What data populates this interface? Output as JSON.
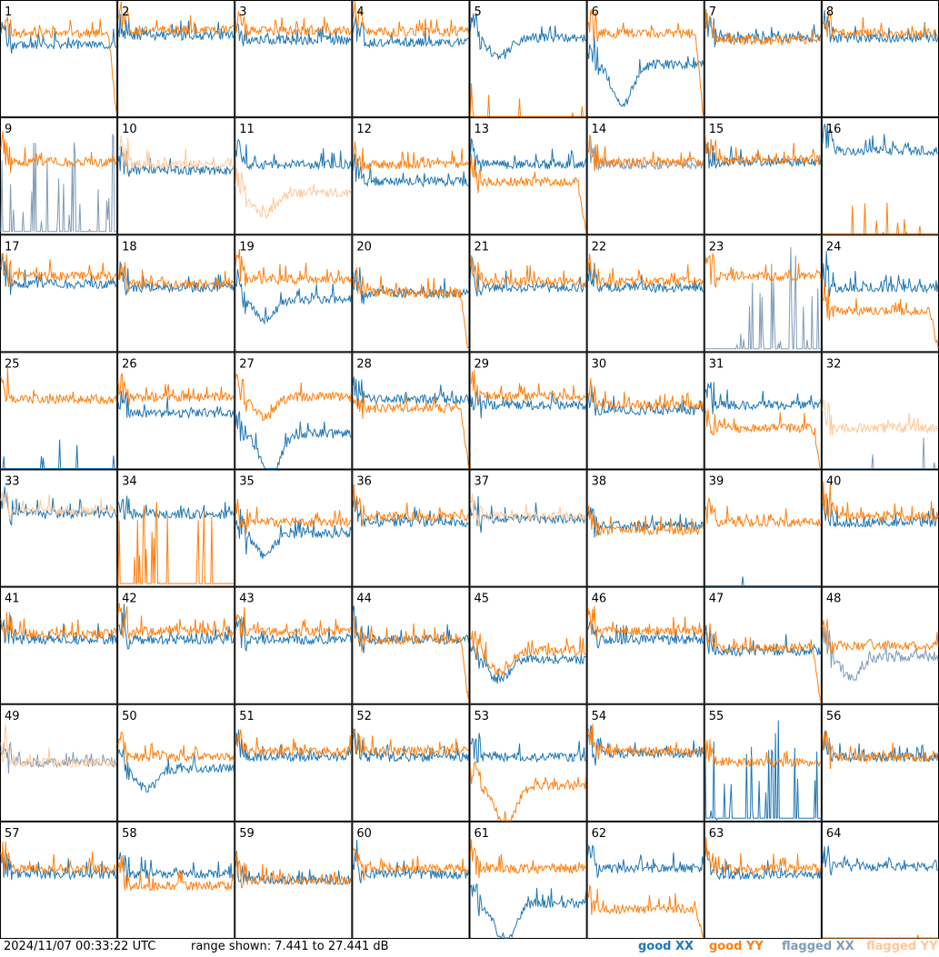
{
  "chart_data": {
    "type": "line",
    "title": "",
    "timestamp": "2024/11/07 00:33:22 UTC",
    "range_label": "range shown: 7.441 to 27.441 dB",
    "ylim": [
      7.441,
      27.441
    ],
    "unit": "dB",
    "grid": {
      "rows": 8,
      "cols": 8
    },
    "legend": [
      {
        "label": "good XX",
        "color": "#1f77b4"
      },
      {
        "label": "good YY",
        "color": "#ff7f0e"
      },
      {
        "label": "flagged XX",
        "color": "#7f9cb8"
      },
      {
        "label": "flagged YY",
        "color": "#ffc89a"
      }
    ],
    "panels": [
      {
        "id": "1",
        "xx": "good",
        "yy": "good",
        "xxLevel": 0.62,
        "yyLevel": 0.72,
        "xxShape": "normal",
        "yyShape": "drop"
      },
      {
        "id": "2",
        "xx": "good",
        "yy": "good",
        "xxLevel": 0.7,
        "yyLevel": 0.75,
        "xxShape": "normal",
        "yyShape": "normal"
      },
      {
        "id": "3",
        "xx": "good",
        "yy": "good",
        "xxLevel": 0.66,
        "yyLevel": 0.74,
        "xxShape": "normal",
        "yyShape": "normal"
      },
      {
        "id": "4",
        "xx": "good",
        "yy": "good",
        "xxLevel": 0.64,
        "yyLevel": 0.73,
        "xxShape": "normal",
        "yyShape": "normal"
      },
      {
        "id": "5",
        "xx": "good",
        "yy": "good",
        "xxLevel": 0.68,
        "yyLevel": 0.0,
        "xxShape": "dip",
        "yyShape": "flat"
      },
      {
        "id": "6",
        "xx": "good",
        "yy": "good",
        "xxLevel": 0.45,
        "yyLevel": 0.72,
        "xxShape": "deepdip",
        "yyShape": "drop"
      },
      {
        "id": "7",
        "xx": "good",
        "yy": "good",
        "xxLevel": 0.68,
        "yyLevel": 0.66,
        "xxShape": "normal",
        "yyShape": "normal"
      },
      {
        "id": "8",
        "xx": "good",
        "yy": "good",
        "xxLevel": 0.68,
        "yyLevel": 0.72,
        "xxShape": "normal",
        "yyShape": "normal"
      },
      {
        "id": "9",
        "xx": "flagged",
        "yy": "good",
        "xxLevel": 0.05,
        "yyLevel": 0.62,
        "xxShape": "spiky",
        "yyShape": "normal"
      },
      {
        "id": "10",
        "xx": "good",
        "yy": "flagged",
        "xxLevel": 0.55,
        "yyLevel": 0.6,
        "xxShape": "normal",
        "yyShape": "normal"
      },
      {
        "id": "11",
        "xx": "good",
        "yy": "flagged",
        "xxLevel": 0.6,
        "yyLevel": 0.35,
        "xxShape": "normal",
        "yyShape": "dip"
      },
      {
        "id": "12",
        "xx": "good",
        "yy": "good",
        "xxLevel": 0.45,
        "yyLevel": 0.6,
        "xxShape": "normal",
        "yyShape": "normal"
      },
      {
        "id": "13",
        "xx": "good",
        "yy": "good",
        "xxLevel": 0.6,
        "yyLevel": 0.45,
        "xxShape": "normal",
        "yyShape": "drop"
      },
      {
        "id": "14",
        "xx": "flagged",
        "yy": "good",
        "xxLevel": 0.6,
        "yyLevel": 0.62,
        "xxShape": "normal",
        "yyShape": "normal"
      },
      {
        "id": "15",
        "xx": "good",
        "yy": "good",
        "xxLevel": 0.62,
        "yyLevel": 0.64,
        "xxShape": "normal",
        "yyShape": "normal"
      },
      {
        "id": "16",
        "xx": "good",
        "yy": "good",
        "xxLevel": 0.72,
        "yyLevel": 0.0,
        "xxShape": "normal",
        "yyShape": "flat"
      },
      {
        "id": "17",
        "xx": "good",
        "yy": "good",
        "xxLevel": 0.58,
        "yyLevel": 0.65,
        "xxShape": "normal",
        "yyShape": "normal"
      },
      {
        "id": "18",
        "xx": "good",
        "yy": "good",
        "xxLevel": 0.55,
        "yyLevel": 0.58,
        "xxShape": "normal",
        "yyShape": "normal"
      },
      {
        "id": "19",
        "xx": "good",
        "yy": "good",
        "xxLevel": 0.45,
        "yyLevel": 0.62,
        "xxShape": "dip",
        "yyShape": "normal"
      },
      {
        "id": "20",
        "xx": "good",
        "yy": "good",
        "xxLevel": 0.5,
        "yyLevel": 0.5,
        "xxShape": "normal",
        "yyShape": "drop"
      },
      {
        "id": "21",
        "xx": "good",
        "yy": "good",
        "xxLevel": 0.55,
        "yyLevel": 0.6,
        "xxShape": "normal",
        "yyShape": "normal"
      },
      {
        "id": "22",
        "xx": "good",
        "yy": "good",
        "xxLevel": 0.55,
        "yyLevel": 0.6,
        "xxShape": "normal",
        "yyShape": "normal"
      },
      {
        "id": "23",
        "xx": "flagged",
        "yy": "good",
        "xxLevel": 0.3,
        "yyLevel": 0.65,
        "xxShape": "spiky",
        "yyShape": "normal"
      },
      {
        "id": "24",
        "xx": "good",
        "yy": "good",
        "xxLevel": 0.55,
        "yyLevel": 0.35,
        "xxShape": "normal",
        "yyShape": "drop"
      },
      {
        "id": "25",
        "xx": "good",
        "yy": "good",
        "xxLevel": 0.0,
        "yyLevel": 0.6,
        "xxShape": "flat",
        "yyShape": "normal"
      },
      {
        "id": "26",
        "xx": "good",
        "yy": "good",
        "xxLevel": 0.48,
        "yyLevel": 0.62,
        "xxShape": "normal",
        "yyShape": "normal"
      },
      {
        "id": "27",
        "xx": "good",
        "yy": "good",
        "xxLevel": 0.3,
        "yyLevel": 0.62,
        "xxShape": "deepdip",
        "yyShape": "dip"
      },
      {
        "id": "28",
        "xx": "good",
        "yy": "good",
        "xxLevel": 0.6,
        "yyLevel": 0.52,
        "xxShape": "normal",
        "yyShape": "drop"
      },
      {
        "id": "29",
        "xx": "good",
        "yy": "good",
        "xxLevel": 0.55,
        "yyLevel": 0.62,
        "xxShape": "normal",
        "yyShape": "normal"
      },
      {
        "id": "30",
        "xx": "good",
        "yy": "good",
        "xxLevel": 0.5,
        "yyLevel": 0.55,
        "xxShape": "normal",
        "yyShape": "normal"
      },
      {
        "id": "31",
        "xx": "good",
        "yy": "good",
        "xxLevel": 0.55,
        "yyLevel": 0.35,
        "xxShape": "normal",
        "yyShape": "drop"
      },
      {
        "id": "32",
        "xx": "flagged",
        "yy": "flagged",
        "xxLevel": 0.0,
        "yyLevel": 0.35,
        "xxShape": "flat",
        "yyShape": "normal"
      },
      {
        "id": "33",
        "xx": "good",
        "yy": "flagged",
        "xxLevel": 0.62,
        "yyLevel": 0.65,
        "xxShape": "normal",
        "yyShape": "normal"
      },
      {
        "id": "34",
        "xx": "good",
        "yy": "good",
        "xxLevel": 0.62,
        "yyLevel": 0.05,
        "xxShape": "normal",
        "yyShape": "spiky"
      },
      {
        "id": "35",
        "xx": "good",
        "yy": "good",
        "xxLevel": 0.45,
        "yyLevel": 0.55,
        "xxShape": "dip",
        "yyShape": "normal"
      },
      {
        "id": "36",
        "xx": "good",
        "yy": "good",
        "xxLevel": 0.55,
        "yyLevel": 0.6,
        "xxShape": "normal",
        "yyShape": "normal"
      },
      {
        "id": "37",
        "xx": "good",
        "yy": "flagged",
        "xxLevel": 0.58,
        "yyLevel": 0.6,
        "xxShape": "normal",
        "yyShape": "normal"
      },
      {
        "id": "38",
        "xx": "good",
        "yy": "good",
        "xxLevel": 0.52,
        "yyLevel": 0.48,
        "xxShape": "normal",
        "yyShape": "normal"
      },
      {
        "id": "39",
        "xx": "good",
        "yy": "good",
        "xxLevel": 0.0,
        "yyLevel": 0.55,
        "xxShape": "flat",
        "yyShape": "normal"
      },
      {
        "id": "40",
        "xx": "good",
        "yy": "good",
        "xxLevel": 0.55,
        "yyLevel": 0.6,
        "xxShape": "normal",
        "yyShape": "normal"
      },
      {
        "id": "41",
        "xx": "good",
        "yy": "good",
        "xxLevel": 0.55,
        "yyLevel": 0.6,
        "xxShape": "normal",
        "yyShape": "normal"
      },
      {
        "id": "42",
        "xx": "good",
        "yy": "good",
        "xxLevel": 0.55,
        "yyLevel": 0.62,
        "xxShape": "normal",
        "yyShape": "normal"
      },
      {
        "id": "43",
        "xx": "good",
        "yy": "good",
        "xxLevel": 0.55,
        "yyLevel": 0.62,
        "xxShape": "normal",
        "yyShape": "normal"
      },
      {
        "id": "44",
        "xx": "good",
        "yy": "good",
        "xxLevel": 0.55,
        "yyLevel": 0.55,
        "xxShape": "normal",
        "yyShape": "drop"
      },
      {
        "id": "45",
        "xx": "good",
        "yy": "good",
        "xxLevel": 0.38,
        "yyLevel": 0.45,
        "xxShape": "dip",
        "yyShape": "dip"
      },
      {
        "id": "46",
        "xx": "good",
        "yy": "good",
        "xxLevel": 0.55,
        "yyLevel": 0.62,
        "xxShape": "normal",
        "yyShape": "normal"
      },
      {
        "id": "47",
        "xx": "good",
        "yy": "good",
        "xxLevel": 0.45,
        "yyLevel": 0.48,
        "xxShape": "normal",
        "yyShape": "drop"
      },
      {
        "id": "48",
        "xx": "flagged",
        "yy": "good",
        "xxLevel": 0.4,
        "yyLevel": 0.5,
        "xxShape": "dip",
        "yyShape": "normal"
      },
      {
        "id": "49",
        "xx": "flagged",
        "yy": "flagged",
        "xxLevel": 0.5,
        "yyLevel": 0.5,
        "xxShape": "normal",
        "yyShape": "normal"
      },
      {
        "id": "50",
        "xx": "good",
        "yy": "good",
        "xxLevel": 0.45,
        "yyLevel": 0.55,
        "xxShape": "dip",
        "yyShape": "normal"
      },
      {
        "id": "51",
        "xx": "good",
        "yy": "good",
        "xxLevel": 0.55,
        "yyLevel": 0.6,
        "xxShape": "normal",
        "yyShape": "normal"
      },
      {
        "id": "52",
        "xx": "good",
        "yy": "good",
        "xxLevel": 0.55,
        "yyLevel": 0.6,
        "xxShape": "normal",
        "yyShape": "normal"
      },
      {
        "id": "53",
        "xx": "good",
        "yy": "good",
        "xxLevel": 0.55,
        "yyLevel": 0.3,
        "xxShape": "normal",
        "yyShape": "deepdip"
      },
      {
        "id": "54",
        "xx": "good",
        "yy": "good",
        "xxLevel": 0.58,
        "yyLevel": 0.6,
        "xxShape": "normal",
        "yyShape": "normal"
      },
      {
        "id": "55",
        "xx": "good",
        "yy": "good",
        "xxLevel": 0.05,
        "yyLevel": 0.5,
        "xxShape": "spiky",
        "yyShape": "normal"
      },
      {
        "id": "56",
        "xx": "good",
        "yy": "good",
        "xxLevel": 0.55,
        "yyLevel": 0.55,
        "xxShape": "normal",
        "yyShape": "normal"
      },
      {
        "id": "57",
        "xx": "good",
        "yy": "good",
        "xxLevel": 0.55,
        "yyLevel": 0.6,
        "xxShape": "normal",
        "yyShape": "normal"
      },
      {
        "id": "58",
        "xx": "good",
        "yy": "good",
        "xxLevel": 0.55,
        "yyLevel": 0.45,
        "xxShape": "normal",
        "yyShape": "normal"
      },
      {
        "id": "59",
        "xx": "good",
        "yy": "good",
        "xxLevel": 0.5,
        "yyLevel": 0.5,
        "xxShape": "normal",
        "yyShape": "normal"
      },
      {
        "id": "60",
        "xx": "good",
        "yy": "good",
        "xxLevel": 0.55,
        "yyLevel": 0.6,
        "xxShape": "normal",
        "yyShape": "normal"
      },
      {
        "id": "61",
        "xx": "good",
        "yy": "good",
        "xxLevel": 0.3,
        "yyLevel": 0.6,
        "xxShape": "deepdip",
        "yyShape": "normal"
      },
      {
        "id": "62",
        "xx": "good",
        "yy": "good",
        "xxLevel": 0.6,
        "yyLevel": 0.25,
        "xxShape": "normal",
        "yyShape": "drop"
      },
      {
        "id": "63",
        "xx": "good",
        "yy": "good",
        "xxLevel": 0.55,
        "yyLevel": 0.6,
        "xxShape": "normal",
        "yyShape": "normal"
      },
      {
        "id": "64",
        "xx": "good",
        "yy": "good",
        "xxLevel": 0.62,
        "yyLevel": 0.0,
        "xxShape": "normal",
        "yyShape": "flat"
      }
    ]
  }
}
